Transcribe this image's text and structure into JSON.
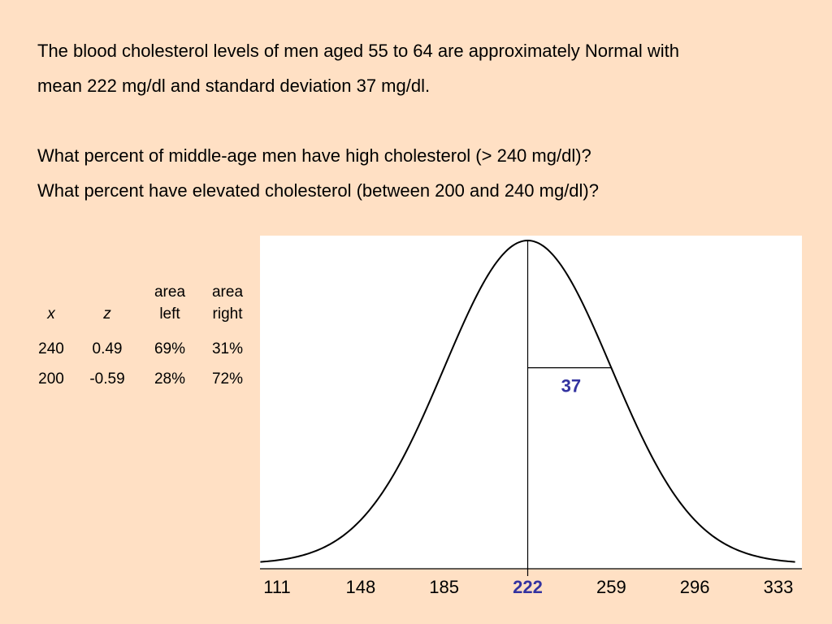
{
  "intro": [
    "The blood cholesterol levels of men aged 55 to 64 are approximately Normal with",
    "mean 222 mg/dl and standard deviation 37 mg/dl."
  ],
  "questions": [
    "What percent of middle-age men have high cholesterol (> 240 mg/dl)?",
    "What percent have elevated cholesterol (between 200 and 240 mg/dl)?"
  ],
  "table": {
    "headers": [
      {
        "top": "",
        "bottom": "x"
      },
      {
        "top": "",
        "bottom": "z"
      },
      {
        "top": "area",
        "bottom": "left"
      },
      {
        "top": "area",
        "bottom": "right"
      }
    ],
    "rows": [
      [
        "240",
        "0.49",
        "69%",
        "31%"
      ],
      [
        "200",
        "-0.59",
        "28%",
        "72%"
      ]
    ]
  },
  "colors": {
    "background": "#FFE0C4",
    "plot_background": "#FFFFFF",
    "curve": "#000000",
    "highlight": "#3333A0"
  },
  "chart_data": {
    "type": "line",
    "distribution": "normal",
    "mean": 222,
    "sd": 37,
    "x_ticks": [
      "111",
      "148",
      "185",
      "222",
      "259",
      "296",
      "333"
    ],
    "highlight_tick": "222",
    "xlim": [
      111,
      333
    ],
    "sd_label": "37",
    "grid": false,
    "title": "",
    "xlabel": "",
    "ylabel": ""
  }
}
